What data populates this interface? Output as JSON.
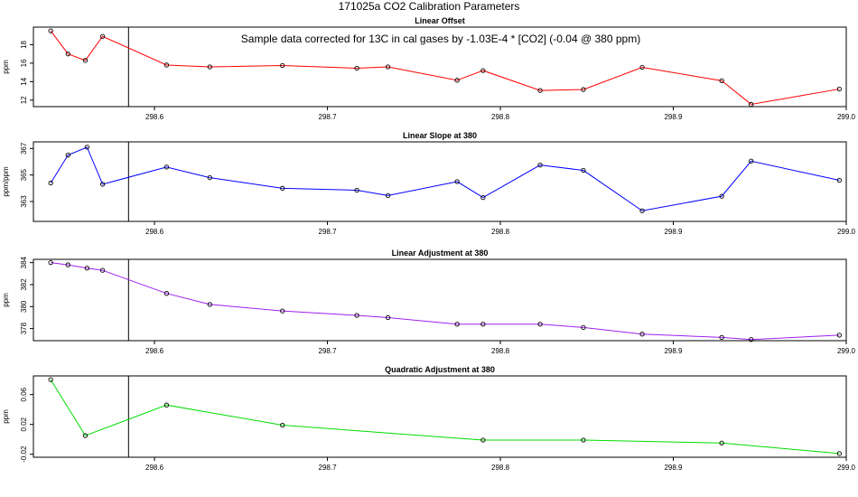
{
  "figure_title": "171025a   CO2 Calibration Parameters",
  "chart_data": [
    {
      "type": "line",
      "title": "Linear Offset",
      "ylabel": "ppm",
      "color": "#ff0000",
      "annotation": "Sample data corrected for 13C in cal gases by -1.03E-4 * [CO2] (-0.04 @ 380 ppm)",
      "xlim": [
        298.53,
        299.0
      ],
      "ylim": [
        11.3,
        19.9
      ],
      "xticks": [
        298.6,
        298.7,
        298.8,
        298.9,
        299.0
      ],
      "xtick_labels": [
        "298.6",
        "298.7",
        "298.8",
        "298.9",
        "299.0"
      ],
      "yticks": [
        12,
        14,
        16,
        18
      ],
      "ytick_labels": [
        "12",
        "14",
        "16",
        "18"
      ],
      "vline_x": 298.585,
      "x": [
        298.54,
        298.55,
        298.56,
        298.57,
        298.607,
        298.632,
        298.674,
        298.717,
        298.735,
        298.775,
        298.79,
        298.823,
        298.848,
        298.882,
        298.928,
        298.945,
        298.996
      ],
      "y": [
        19.5,
        17.0,
        16.3,
        18.9,
        15.8,
        15.6,
        15.75,
        15.45,
        15.6,
        14.15,
        15.2,
        13.05,
        13.15,
        15.55,
        14.1,
        11.55,
        13.2
      ]
    },
    {
      "type": "line",
      "title": "Linear Slope at 380",
      "ylabel": "ppm/ppm",
      "color": "#0000ff",
      "xlim": [
        298.53,
        299.0
      ],
      "ylim": [
        361.5,
        367.5
      ],
      "xticks": [
        298.6,
        298.7,
        298.8,
        298.9,
        299.0
      ],
      "xtick_labels": [
        "298.6",
        "298.7",
        "298.8",
        "298.9",
        "299.0"
      ],
      "yticks": [
        363,
        365,
        367
      ],
      "ytick_labels": [
        "363",
        "365",
        "367"
      ],
      "vline_x": 298.585,
      "x": [
        298.54,
        298.55,
        298.561,
        298.57,
        298.607,
        298.632,
        298.674,
        298.717,
        298.735,
        298.775,
        298.79,
        298.823,
        298.848,
        298.882,
        298.928,
        298.945,
        298.996
      ],
      "y": [
        364.4,
        366.5,
        367.1,
        364.3,
        365.6,
        364.8,
        364.0,
        363.85,
        363.45,
        364.5,
        363.3,
        365.75,
        365.35,
        362.3,
        363.4,
        366.05,
        364.6
      ]
    },
    {
      "type": "line",
      "title": "Linear Adjustment at 380",
      "ylabel": "ppm",
      "color": "#a020f0",
      "xlim": [
        298.53,
        299.0
      ],
      "ylim": [
        376.9,
        384.3
      ],
      "xticks": [
        298.6,
        298.7,
        298.8,
        298.9,
        299.0
      ],
      "xtick_labels": [
        "298.6",
        "298.7",
        "298.8",
        "298.9",
        "299.0"
      ],
      "yticks": [
        378,
        380,
        382,
        384
      ],
      "ytick_labels": [
        "378",
        "380",
        "382",
        "384"
      ],
      "vline_x": 298.585,
      "x": [
        298.54,
        298.55,
        298.561,
        298.57,
        298.607,
        298.632,
        298.674,
        298.717,
        298.735,
        298.775,
        298.79,
        298.823,
        298.848,
        298.882,
        298.928,
        298.945,
        298.996
      ],
      "y": [
        384.0,
        383.8,
        383.5,
        383.3,
        381.2,
        380.2,
        379.6,
        379.2,
        379.0,
        378.4,
        378.4,
        378.4,
        378.1,
        377.5,
        377.2,
        377.0,
        377.4
      ]
    },
    {
      "type": "line",
      "title": "Quadratic Adjustment at 380",
      "ylabel": "ppm",
      "color": "#00dd00",
      "xlim": [
        298.53,
        299.0
      ],
      "ylim": [
        -0.024,
        0.085
      ],
      "xticks": [
        298.6,
        298.7,
        298.8,
        298.9,
        299.0
      ],
      "xtick_labels": [
        "298.6",
        "298.7",
        "298.8",
        "298.9",
        "299.0"
      ],
      "yticks": [
        -0.02,
        0.02,
        0.06
      ],
      "ytick_labels": [
        "-0.02",
        "0.02",
        "0.06"
      ],
      "vline_x": 298.585,
      "x": [
        298.54,
        298.56,
        298.607,
        298.674,
        298.79,
        298.848,
        298.928,
        298.996
      ],
      "y": [
        0.08,
        0.005,
        0.046,
        0.019,
        -0.001,
        -0.001,
        -0.005,
        -0.019
      ]
    }
  ]
}
